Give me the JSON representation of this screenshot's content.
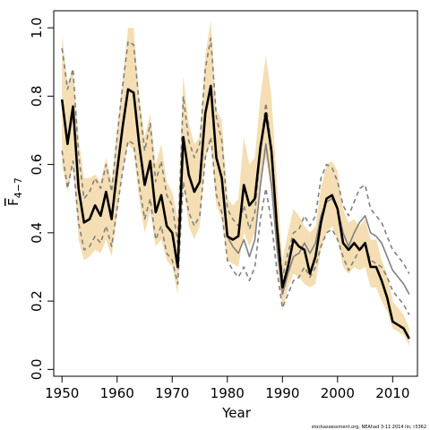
{
  "chart_data": {
    "type": "line",
    "xlabel": "Year",
    "ylabel": "F",
    "ylabel_subscript": "4−7",
    "xlim": [
      1948.5,
      2014.5
    ],
    "ylim": [
      -0.02,
      1.05
    ],
    "x_ticks": [
      1950,
      1960,
      1970,
      1980,
      1990,
      2000,
      2010
    ],
    "x_tick_labels": [
      "1950",
      "1960",
      "1970",
      "1980",
      "1990",
      "2000",
      "2010"
    ],
    "y_ticks": [
      0.0,
      0.2,
      0.4,
      0.6,
      0.8,
      1.0
    ],
    "y_tick_labels": [
      "0.0",
      "0.2",
      "0.4",
      "0.6",
      "0.8",
      "1.0"
    ],
    "grid": false,
    "legend": false,
    "footer": "stockassessment.org, NEAhad 3-11 2014 lin, r3362",
    "colors": {
      "band": "#f5deb3",
      "estimate": "#000000",
      "comparison": "#808080"
    },
    "x": [
      1950,
      1951,
      1952,
      1953,
      1954,
      1955,
      1956,
      1957,
      1958,
      1959,
      1960,
      1961,
      1962,
      1963,
      1964,
      1965,
      1966,
      1967,
      1968,
      1969,
      1970,
      1971,
      1972,
      1973,
      1974,
      1975,
      1976,
      1977,
      1978,
      1979,
      1980,
      1981,
      1982,
      1983,
      1984,
      1985,
      1986,
      1987,
      1988,
      1989,
      1990,
      1991,
      1992,
      1993,
      1994,
      1995,
      1996,
      1997,
      1998,
      1999,
      2000,
      2001,
      2002,
      2003,
      2004,
      2005,
      2006,
      2007,
      2008,
      2009,
      2010,
      2011,
      2012,
      2013
    ],
    "band_upper": [
      0.98,
      0.84,
      0.88,
      0.68,
      0.56,
      0.56,
      0.57,
      0.55,
      0.62,
      0.55,
      0.7,
      0.85,
      1.0,
      1.0,
      0.8,
      0.68,
      0.75,
      0.6,
      0.66,
      0.55,
      0.52,
      0.44,
      0.86,
      0.72,
      0.66,
      0.68,
      0.92,
      1.02,
      0.76,
      0.73,
      0.5,
      0.48,
      0.5,
      0.68,
      0.6,
      0.62,
      0.8,
      0.92,
      0.8,
      0.55,
      0.32,
      0.4,
      0.47,
      0.45,
      0.42,
      0.4,
      0.42,
      0.53,
      0.6,
      0.61,
      0.58,
      0.47,
      0.43,
      0.44,
      0.42,
      0.44,
      0.38,
      0.38,
      0.32,
      0.28,
      0.2,
      0.18,
      0.16,
      0.12
    ],
    "band_lower": [
      0.6,
      0.52,
      0.6,
      0.38,
      0.32,
      0.33,
      0.35,
      0.34,
      0.38,
      0.33,
      0.45,
      0.58,
      0.66,
      0.64,
      0.5,
      0.4,
      0.46,
      0.36,
      0.38,
      0.32,
      0.3,
      0.22,
      0.54,
      0.42,
      0.38,
      0.42,
      0.62,
      0.66,
      0.48,
      0.44,
      0.32,
      0.31,
      0.3,
      0.4,
      0.36,
      0.4,
      0.56,
      0.62,
      0.52,
      0.32,
      0.17,
      0.24,
      0.28,
      0.27,
      0.25,
      0.24,
      0.25,
      0.35,
      0.4,
      0.42,
      0.38,
      0.3,
      0.28,
      0.3,
      0.29,
      0.3,
      0.24,
      0.24,
      0.2,
      0.17,
      0.12,
      0.11,
      0.1,
      0.07
    ],
    "series": [
      {
        "name": "",
        "role": "estimate",
        "style": "solid",
        "values": [
          0.79,
          0.66,
          0.77,
          0.53,
          0.43,
          0.44,
          0.48,
          0.45,
          0.52,
          0.44,
          0.58,
          0.71,
          0.82,
          0.81,
          0.66,
          0.54,
          0.61,
          0.46,
          0.51,
          0.42,
          0.4,
          0.3,
          0.68,
          0.57,
          0.52,
          0.55,
          0.75,
          0.83,
          0.62,
          0.56,
          0.39,
          0.38,
          0.39,
          0.54,
          0.48,
          0.5,
          0.65,
          0.75,
          0.64,
          0.42,
          0.24,
          0.3,
          0.38,
          0.36,
          0.35,
          0.28,
          0.33,
          0.43,
          0.5,
          0.51,
          0.47,
          0.37,
          0.35,
          0.37,
          0.35,
          0.37,
          0.3,
          0.3,
          0.26,
          0.21,
          0.14,
          0.13,
          0.12,
          0.09
        ]
      },
      {
        "name": "",
        "role": "comparison",
        "style": "solid",
        "values": [
          0.79,
          0.66,
          0.77,
          0.53,
          0.43,
          0.44,
          0.48,
          0.45,
          0.52,
          0.44,
          0.58,
          0.71,
          0.82,
          0.81,
          0.66,
          0.54,
          0.61,
          0.46,
          0.51,
          0.42,
          0.4,
          0.3,
          0.68,
          0.57,
          0.52,
          0.55,
          0.75,
          0.83,
          0.62,
          0.56,
          0.39,
          0.36,
          0.34,
          0.38,
          0.33,
          0.38,
          0.54,
          0.66,
          0.54,
          0.36,
          0.22,
          0.28,
          0.33,
          0.34,
          0.37,
          0.34,
          0.37,
          0.45,
          0.49,
          0.5,
          0.47,
          0.4,
          0.36,
          0.4,
          0.43,
          0.45,
          0.4,
          0.39,
          0.37,
          0.33,
          0.29,
          0.27,
          0.25,
          0.22
        ]
      },
      {
        "name": "",
        "role": "comparison-upper",
        "style": "dashed",
        "values": [
          0.94,
          0.82,
          0.88,
          0.63,
          0.5,
          0.52,
          0.56,
          0.53,
          0.6,
          0.52,
          0.68,
          0.83,
          0.96,
          0.95,
          0.78,
          0.64,
          0.72,
          0.55,
          0.61,
          0.51,
          0.48,
          0.37,
          0.8,
          0.67,
          0.62,
          0.66,
          0.88,
          0.97,
          0.74,
          0.67,
          0.47,
          0.44,
          0.42,
          0.48,
          0.41,
          0.46,
          0.64,
          0.78,
          0.65,
          0.43,
          0.27,
          0.34,
          0.4,
          0.41,
          0.45,
          0.42,
          0.45,
          0.56,
          0.6,
          0.59,
          0.55,
          0.48,
          0.45,
          0.49,
          0.53,
          0.54,
          0.47,
          0.45,
          0.43,
          0.39,
          0.35,
          0.33,
          0.31,
          0.28
        ]
      },
      {
        "name": "",
        "role": "comparison-lower",
        "style": "dashed",
        "values": [
          0.64,
          0.53,
          0.61,
          0.43,
          0.35,
          0.36,
          0.39,
          0.37,
          0.42,
          0.36,
          0.47,
          0.58,
          0.67,
          0.66,
          0.54,
          0.44,
          0.5,
          0.38,
          0.42,
          0.34,
          0.32,
          0.25,
          0.55,
          0.46,
          0.42,
          0.45,
          0.62,
          0.68,
          0.51,
          0.46,
          0.32,
          0.29,
          0.27,
          0.3,
          0.26,
          0.3,
          0.44,
          0.53,
          0.43,
          0.29,
          0.18,
          0.22,
          0.26,
          0.27,
          0.3,
          0.27,
          0.3,
          0.36,
          0.4,
          0.41,
          0.38,
          0.33,
          0.29,
          0.32,
          0.35,
          0.36,
          0.32,
          0.31,
          0.3,
          0.27,
          0.23,
          0.21,
          0.19,
          0.16
        ]
      }
    ]
  }
}
